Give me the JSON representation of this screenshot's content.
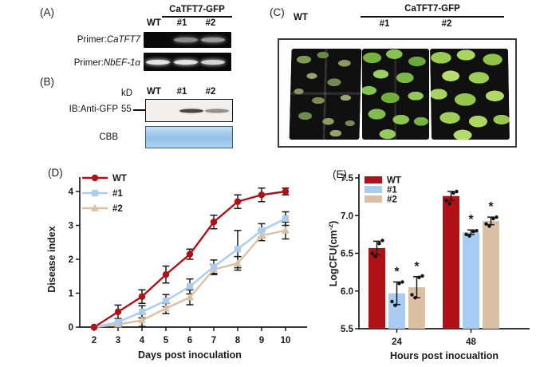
{
  "colors": {
    "wt_red": "#b01116",
    "line1_blue": "#a9cdf2",
    "line2_tan": "#dcc0a4",
    "axis": "#1a1a1a",
    "cbb_blue": "#a7cdec"
  },
  "panels": {
    "a": {
      "label": "(A)",
      "header": "CaTFT7-GFP",
      "lanes": [
        "WT",
        "#1",
        "#2"
      ],
      "rows": [
        {
          "prefix": "Primer:",
          "gene": "CaTFT7",
          "bands": [
            0,
            0.55,
            0.62
          ]
        },
        {
          "prefix": "Primer:",
          "gene": "NbEF-1α",
          "bands": [
            0.95,
            0.95,
            0.88
          ]
        }
      ]
    },
    "b": {
      "label": "(B)",
      "lanes": [
        "WT",
        "#1",
        "#2"
      ],
      "kd": "kD",
      "marker_55": "55",
      "ib": "IB:Anti-GFP",
      "cbb": "CBB",
      "blot_bands": [
        0,
        0.8,
        0.45
      ]
    },
    "c": {
      "label": "(C)",
      "wt": "WT",
      "header": "CaTFT7-GFP",
      "line1": "#1",
      "line2": "#2"
    },
    "d": {
      "label": "(D)"
    },
    "e": {
      "label": "(E)"
    }
  },
  "chart_data": [
    {
      "id": "disease_index",
      "type": "line",
      "x": [
        2,
        3,
        4,
        5,
        6,
        7,
        8,
        9,
        10
      ],
      "xlabel": "Days post inoculation",
      "ylabel": "Disease index",
      "ylim": [
        0,
        4
      ],
      "yticks": [
        0,
        1,
        2,
        3,
        4
      ],
      "legend_position": "top-left",
      "series": [
        {
          "name": "WT",
          "marker": "circle",
          "color": "#b01116",
          "values": [
            0,
            0.45,
            0.9,
            1.55,
            2.15,
            3.1,
            3.7,
            3.9,
            4.0
          ],
          "errors": [
            0.03,
            0.2,
            0.2,
            0.25,
            0.15,
            0.2,
            0.2,
            0.2,
            0.1
          ]
        },
        {
          "name": "#1",
          "marker": "square",
          "color": "#a9cdf2",
          "values": [
            0,
            0.15,
            0.45,
            0.78,
            1.2,
            1.78,
            2.3,
            2.85,
            3.2
          ],
          "errors": [
            0,
            0.1,
            0.18,
            0.18,
            0.22,
            0.2,
            0.55,
            0.2,
            0.2
          ]
        },
        {
          "name": "#2",
          "marker": "triangle",
          "color": "#dcc0a4",
          "values": [
            0,
            0.08,
            0.2,
            0.55,
            0.88,
            1.7,
            1.88,
            2.7,
            2.85
          ],
          "errors": [
            0,
            0.06,
            0.18,
            0.15,
            0.22,
            0.15,
            0.2,
            0.15,
            0.25
          ]
        }
      ]
    },
    {
      "id": "log_cfu",
      "type": "bar",
      "categories": [
        "24",
        "48"
      ],
      "xlabel": "Hours post inocualtion",
      "ylabel_main": "LogCFU(cm",
      "ylabel_sup": "-2",
      "ylabel_close": ")",
      "ylim": [
        5.5,
        7.5
      ],
      "yticks": [
        5.5,
        6.0,
        6.5,
        7.0,
        7.5
      ],
      "legend_position": "top-left",
      "series": [
        {
          "name": "WT",
          "color": "#b01116",
          "values": [
            6.57,
            7.26
          ],
          "errors": [
            0.09,
            0.06
          ],
          "points": [
            [
              6.5,
              6.46,
              6.63,
              6.67
            ],
            [
              7.2,
              7.16,
              7.3,
              7.32
            ]
          ],
          "sig": [
            false,
            false
          ]
        },
        {
          "name": "#1",
          "color": "#a9cdf2",
          "values": [
            5.97,
            6.78
          ],
          "errors": [
            0.15,
            0.03
          ],
          "points": [
            [
              5.86,
              5.81,
              6.1,
              6.12
            ],
            [
              6.75,
              6.73,
              6.79,
              6.8
            ]
          ],
          "sig": [
            true,
            true
          ]
        },
        {
          "name": "#2",
          "color": "#dcc0a4",
          "values": [
            6.05,
            6.93
          ],
          "errors": [
            0.14,
            0.05
          ],
          "points": [
            [
              5.95,
              5.91,
              6.18,
              6.2
            ],
            [
              6.89,
              6.86,
              6.96,
              6.98
            ]
          ],
          "sig": [
            true,
            true
          ]
        }
      ]
    }
  ]
}
